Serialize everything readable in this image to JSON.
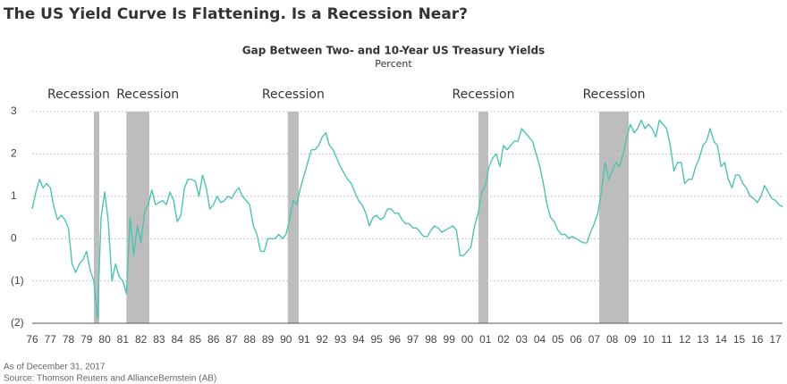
{
  "chart_data": {
    "type": "line",
    "title": "The US Yield Curve Is Flattening. Is a Recession Near?",
    "subtitle": "Gap Between Two- and 10-Year US Treasury Yields",
    "y_label": "Percent",
    "notes": [
      "As of December 31, 2017",
      "Source: Thomson Reuters and AllianceBernstein (AB)"
    ],
    "xlim": [
      1976,
      2017.4
    ],
    "ylim": [
      -2,
      3
    ],
    "yticks": [
      3,
      2,
      1,
      0,
      {
        "value": -1,
        "label": "(1)"
      },
      {
        "value": -2,
        "label": "(2)"
      }
    ],
    "xticks": [
      {
        "value": 1976,
        "label": "76"
      },
      {
        "value": 1977,
        "label": "77"
      },
      {
        "value": 1978,
        "label": "78"
      },
      {
        "value": 1979,
        "label": "79"
      },
      {
        "value": 1980,
        "label": "80"
      },
      {
        "value": 1981,
        "label": "81"
      },
      {
        "value": 1982,
        "label": "82"
      },
      {
        "value": 1983,
        "label": "83"
      },
      {
        "value": 1984,
        "label": "84"
      },
      {
        "value": 1985,
        "label": "85"
      },
      {
        "value": 1986,
        "label": "86"
      },
      {
        "value": 1987,
        "label": "87"
      },
      {
        "value": 1988,
        "label": "88"
      },
      {
        "value": 1989,
        "label": "89"
      },
      {
        "value": 1990,
        "label": "90"
      },
      {
        "value": 1991,
        "label": "91"
      },
      {
        "value": 1992,
        "label": "92"
      },
      {
        "value": 1993,
        "label": "93"
      },
      {
        "value": 1994,
        "label": "94"
      },
      {
        "value": 1995,
        "label": "95"
      },
      {
        "value": 1996,
        "label": "96"
      },
      {
        "value": 1997,
        "label": "97"
      },
      {
        "value": 1998,
        "label": "98"
      },
      {
        "value": 1999,
        "label": "99"
      },
      {
        "value": 2000,
        "label": "00"
      },
      {
        "value": 2001,
        "label": "01"
      },
      {
        "value": 2002,
        "label": "02"
      },
      {
        "value": 2003,
        "label": "03"
      },
      {
        "value": 2004,
        "label": "04"
      },
      {
        "value": 2005,
        "label": "05"
      },
      {
        "value": 2006,
        "label": "06"
      },
      {
        "value": 2007,
        "label": "07"
      },
      {
        "value": 2008,
        "label": "08"
      },
      {
        "value": 2009,
        "label": "09"
      },
      {
        "value": 2010,
        "label": "10"
      },
      {
        "value": 2011,
        "label": "11"
      },
      {
        "value": 2012,
        "label": "12"
      },
      {
        "value": 2013,
        "label": "13"
      },
      {
        "value": 2014,
        "label": "14"
      },
      {
        "value": 2015,
        "label": "15"
      },
      {
        "value": 2016,
        "label": "16"
      },
      {
        "value": 2017,
        "label": "17"
      }
    ],
    "grid": true,
    "recessions": [
      {
        "label": "Recession",
        "start": 1979.4,
        "end": 1979.7
      },
      {
        "label": "Recession",
        "start": 1981.2,
        "end": 1982.46
      },
      {
        "label": "Recession",
        "start": 1990.1,
        "end": 1990.7
      },
      {
        "label": "Recession",
        "start": 2000.62,
        "end": 2001.16
      },
      {
        "label": "Recession",
        "start": 2007.28,
        "end": 2008.91
      }
    ],
    "recession_color": "#bdbdbd",
    "color": "#4fc3b1",
    "x": [
      1976,
      1976.2,
      1976.4,
      1976.6,
      1976.8,
      1977,
      1977.2,
      1977.4,
      1977.6,
      1977.8,
      1978,
      1978.2,
      1978.4,
      1978.6,
      1978.8,
      1979,
      1979.2,
      1979.4,
      1979.6,
      1979.8,
      1980,
      1980.2,
      1980.4,
      1980.6,
      1980.8,
      1981,
      1981.2,
      1981.4,
      1981.6,
      1981.8,
      1982,
      1982.2,
      1982.4,
      1982.6,
      1982.8,
      1983,
      1983.2,
      1983.4,
      1983.6,
      1983.8,
      1984,
      1984.2,
      1984.4,
      1984.6,
      1984.8,
      1985,
      1985.2,
      1985.4,
      1985.6,
      1985.8,
      1986,
      1986.2,
      1986.4,
      1986.6,
      1986.8,
      1987,
      1987.2,
      1987.4,
      1987.6,
      1987.8,
      1988,
      1988.2,
      1988.4,
      1988.6,
      1988.8,
      1989,
      1989.2,
      1989.4,
      1989.6,
      1989.8,
      1990,
      1990.2,
      1990.4,
      1990.6,
      1990.8,
      1991,
      1991.2,
      1991.4,
      1991.6,
      1991.8,
      1992,
      1992.2,
      1992.4,
      1992.6,
      1992.8,
      1993,
      1993.2,
      1993.4,
      1993.6,
      1993.8,
      1994,
      1994.2,
      1994.4,
      1994.6,
      1994.8,
      1995,
      1995.2,
      1995.4,
      1995.6,
      1995.8,
      1996,
      1996.2,
      1996.4,
      1996.6,
      1996.8,
      1997,
      1997.2,
      1997.4,
      1997.6,
      1997.8,
      1998,
      1998.2,
      1998.4,
      1998.6,
      1998.8,
      1999,
      1999.2,
      1999.4,
      1999.6,
      1999.8,
      2000,
      2000.2,
      2000.4,
      2000.6,
      2000.8,
      2001,
      2001.2,
      2001.4,
      2001.6,
      2001.8,
      2002,
      2002.2,
      2002.4,
      2002.6,
      2002.8,
      2003,
      2003.2,
      2003.4,
      2003.6,
      2003.8,
      2004,
      2004.2,
      2004.4,
      2004.6,
      2004.8,
      2005,
      2005.2,
      2005.4,
      2005.6,
      2005.8,
      2006,
      2006.2,
      2006.4,
      2006.6,
      2006.8,
      2007,
      2007.2,
      2007.4,
      2007.6,
      2007.8,
      2008,
      2008.2,
      2008.4,
      2008.6,
      2008.8,
      2009,
      2009.2,
      2009.4,
      2009.6,
      2009.8,
      2010,
      2010.2,
      2010.4,
      2010.6,
      2010.8,
      2011,
      2011.2,
      2011.4,
      2011.6,
      2011.8,
      2012,
      2012.2,
      2012.4,
      2012.6,
      2012.8,
      2013,
      2013.2,
      2013.4,
      2013.6,
      2013.8,
      2014,
      2014.2,
      2014.4,
      2014.6,
      2014.8,
      2015,
      2015.2,
      2015.4,
      2015.6,
      2015.8,
      2016,
      2016.2,
      2016.4,
      2016.6,
      2016.8,
      2017,
      2017.2,
      2017.4
    ],
    "values": [
      0.7,
      1.1,
      1.4,
      1.2,
      1.3,
      1.2,
      0.75,
      0.45,
      0.55,
      0.45,
      0.25,
      -0.6,
      -0.8,
      -0.6,
      -0.5,
      -0.3,
      -0.75,
      -1.0,
      -1.9,
      0.5,
      1.1,
      0.4,
      -1.0,
      -0.6,
      -0.9,
      -1.0,
      -1.3,
      0.5,
      -0.4,
      0.3,
      -0.1,
      0.65,
      0.8,
      1.15,
      0.8,
      0.85,
      0.9,
      0.8,
      1.1,
      0.9,
      0.4,
      0.55,
      1.2,
      1.4,
      1.4,
      1.35,
      1.0,
      1.5,
      1.2,
      0.7,
      0.8,
      1.0,
      0.85,
      0.9,
      1.0,
      0.95,
      1.1,
      1.2,
      1.0,
      0.9,
      0.8,
      0.3,
      0.1,
      -0.3,
      -0.3,
      0.0,
      0.0,
      0.0,
      0.1,
      0.0,
      0.1,
      0.45,
      0.9,
      0.8,
      1.2,
      1.5,
      1.8,
      2.1,
      2.1,
      2.2,
      2.4,
      2.5,
      2.2,
      2.1,
      1.9,
      1.7,
      1.55,
      1.4,
      1.3,
      1.1,
      0.9,
      0.8,
      0.6,
      0.3,
      0.5,
      0.55,
      0.45,
      0.5,
      0.7,
      0.7,
      0.6,
      0.6,
      0.45,
      0.35,
      0.35,
      0.25,
      0.25,
      0.15,
      0.05,
      0.05,
      0.2,
      0.3,
      0.25,
      0.15,
      0.2,
      0.25,
      0.3,
      0.2,
      -0.4,
      -0.4,
      -0.3,
      -0.2,
      0.3,
      0.6,
      1.1,
      1.25,
      1.7,
      1.9,
      2.0,
      1.7,
      2.2,
      2.1,
      2.2,
      2.3,
      2.3,
      2.6,
      2.5,
      2.4,
      2.3,
      2.0,
      1.7,
      1.3,
      0.8,
      0.5,
      0.4,
      0.2,
      0.1,
      0.1,
      0.0,
      0.05,
      0.0,
      -0.05,
      -0.1,
      -0.1,
      0.15,
      0.35,
      0.6,
      1.1,
      1.8,
      1.4,
      1.6,
      1.8,
      1.7,
      2.0,
      2.4,
      2.7,
      2.5,
      2.6,
      2.8,
      2.6,
      2.7,
      2.6,
      2.4,
      2.8,
      2.7,
      2.6,
      2.2,
      1.6,
      1.8,
      1.8,
      1.3,
      1.4,
      1.4,
      1.7,
      1.9,
      2.2,
      2.3,
      2.6,
      2.3,
      2.2,
      1.7,
      1.8,
      1.4,
      1.2,
      1.5,
      1.5,
      1.3,
      1.2,
      1.0,
      0.95,
      0.85,
      1.0,
      1.25,
      1.1,
      0.95,
      0.9,
      0.8,
      0.75
    ]
  }
}
